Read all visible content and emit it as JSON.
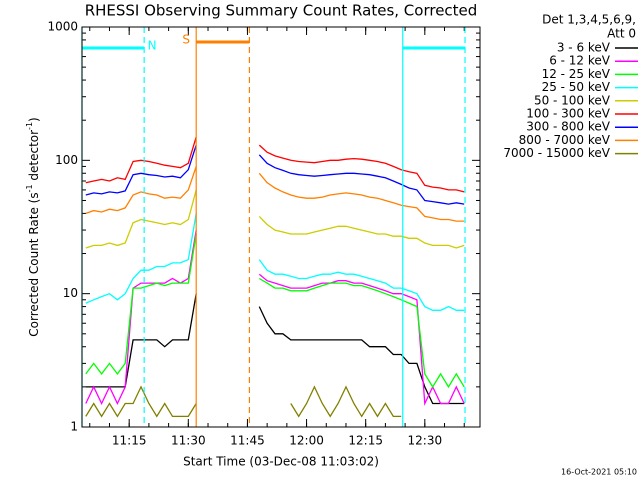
{
  "chart_data": {
    "type": "line",
    "title": "RHESSI Observing Summary Count Rates, Corrected",
    "xlabel": "Start Time (03-Dec-08 11:03:02)",
    "ylabel": [
      "Corrected Count Rate (s",
      "-1",
      " detector",
      "-1",
      ")"
    ],
    "legend_title": [
      "Det 1,3,4,5,6,9,",
      "Att 0"
    ],
    "footer": "16-Oct-2021 05:10",
    "ylog": true,
    "xlim": [
      663.03,
      764
    ],
    "ylim": [
      1,
      1000
    ],
    "yticks": [
      1,
      10,
      100,
      1000
    ],
    "xticks": [
      {
        "value": 675,
        "label": "11:15"
      },
      {
        "value": 690,
        "label": "11:30"
      },
      {
        "value": 705,
        "label": "11:45"
      },
      {
        "value": 720,
        "label": "12:00"
      },
      {
        "value": 735,
        "label": "12:15"
      },
      {
        "value": 750,
        "label": "12:30"
      }
    ],
    "intervals": [
      {
        "label": "N",
        "color": "#00ffff",
        "start": 663.03,
        "end": 678.8
      },
      {
        "label": "S",
        "color": "#ff8000",
        "start": 692,
        "end": 705.5
      },
      {
        "color": "#00ffff",
        "start": 744.4,
        "end": 760.2
      }
    ],
    "x": [
      664,
      666,
      668,
      670,
      672,
      674,
      676,
      678,
      680,
      682,
      684,
      686,
      688,
      690,
      692,
      694,
      696,
      698,
      700,
      702,
      704,
      706,
      708,
      710,
      712,
      714,
      716,
      718,
      720,
      722,
      724,
      726,
      728,
      730,
      732,
      734,
      736,
      738,
      740,
      742,
      744,
      746,
      748,
      750,
      752,
      754,
      756,
      758,
      760
    ],
    "series": [
      {
        "name": "3 - 6 keV",
        "color": "#000000",
        "values": [
          2,
          2,
          2,
          2,
          2,
          2,
          4.5,
          4.5,
          4.5,
          4.5,
          4,
          4.5,
          4.5,
          4.5,
          10,
          null,
          null,
          null,
          null,
          null,
          null,
          null,
          8,
          6,
          5,
          5,
          4.5,
          4.5,
          4.5,
          4.5,
          4.5,
          4.5,
          4.5,
          4.5,
          4.5,
          4.5,
          4,
          4,
          4,
          3.5,
          3.5,
          3,
          3,
          2,
          1.5,
          1.5,
          1.5,
          1.5,
          1.5
        ]
      },
      {
        "name": "6 - 12 keV",
        "color": "#ff00ff",
        "values": [
          1.5,
          2,
          1.5,
          2,
          1.5,
          2,
          11,
          12,
          12,
          12,
          12,
          13,
          12,
          13,
          30,
          null,
          null,
          null,
          null,
          null,
          null,
          null,
          14,
          12.5,
          12,
          11.5,
          11,
          11,
          11,
          11.5,
          12,
          12,
          12.5,
          12.5,
          12,
          12,
          11.5,
          11,
          10.5,
          10,
          10,
          9.5,
          9,
          1.5,
          2,
          1.5,
          1.5,
          2,
          1.5
        ]
      },
      {
        "name": "12 - 25 keV",
        "color": "#00ff00",
        "values": [
          2.5,
          3,
          2.5,
          3,
          2.5,
          3,
          11,
          11,
          11.5,
          12,
          11.5,
          12,
          12,
          12,
          28,
          null,
          null,
          null,
          null,
          null,
          null,
          null,
          13,
          12,
          11,
          11,
          10.5,
          10.5,
          10.5,
          11,
          11.5,
          12,
          12,
          12,
          11.5,
          11.5,
          11,
          10.5,
          10,
          9.5,
          9,
          8.5,
          8,
          2.5,
          2,
          2.5,
          2,
          2.5,
          2
        ]
      },
      {
        "name": "25 - 50 keV",
        "color": "#00ffff",
        "values": [
          8.5,
          9,
          9.5,
          10,
          9,
          10,
          13,
          15,
          15,
          16,
          16,
          17,
          17,
          18,
          40,
          null,
          null,
          null,
          null,
          null,
          null,
          null,
          18,
          15,
          14,
          14,
          13.5,
          13,
          13,
          13.5,
          14,
          14,
          14.5,
          14,
          14,
          13.5,
          13,
          12.5,
          12,
          11,
          11,
          10.5,
          10,
          8,
          7.5,
          7.5,
          8,
          7.5,
          7.5
        ]
      },
      {
        "name": "50 - 100 keV",
        "color": "#cccc00",
        "values": [
          22,
          23,
          23,
          24,
          23,
          24,
          34,
          36,
          35,
          34,
          33,
          34,
          33,
          36,
          60,
          null,
          null,
          null,
          null,
          null,
          null,
          null,
          38,
          33,
          30,
          29,
          28,
          28,
          28,
          29,
          30,
          31,
          32,
          32,
          31,
          30,
          29,
          28,
          28,
          27,
          27,
          26,
          26,
          24,
          23,
          23,
          23,
          22,
          23
        ]
      },
      {
        "name": "100 - 300 keV",
        "color": "#ff0000",
        "values": [
          68,
          70,
          72,
          70,
          74,
          72,
          98,
          100,
          98,
          95,
          92,
          90,
          88,
          95,
          150,
          null,
          null,
          null,
          null,
          null,
          null,
          null,
          130,
          115,
          108,
          104,
          100,
          98,
          97,
          96,
          98,
          100,
          100,
          102,
          103,
          102,
          100,
          98,
          95,
          90,
          85,
          82,
          80,
          65,
          63,
          62,
          60,
          60,
          58
        ]
      },
      {
        "name": "300 - 800 keV",
        "color": "#0000ff",
        "values": [
          55,
          57,
          56,
          58,
          57,
          59,
          78,
          80,
          78,
          77,
          75,
          76,
          74,
          85,
          130,
          null,
          null,
          null,
          null,
          null,
          null,
          null,
          110,
          95,
          88,
          84,
          80,
          78,
          77,
          76,
          77,
          78,
          79,
          80,
          80,
          79,
          78,
          76,
          74,
          70,
          66,
          62,
          60,
          50,
          49,
          48,
          47,
          48,
          47
        ]
      },
      {
        "name": "800 - 7000 keV",
        "color": "#ff8000",
        "values": [
          40,
          42,
          41,
          43,
          42,
          44,
          55,
          58,
          56,
          55,
          52,
          53,
          52,
          60,
          90,
          null,
          null,
          null,
          null,
          null,
          null,
          null,
          80,
          68,
          62,
          58,
          55,
          53,
          52,
          52,
          53,
          55,
          56,
          57,
          56,
          55,
          53,
          52,
          50,
          48,
          46,
          45,
          44,
          38,
          37,
          36,
          36,
          35,
          35
        ]
      },
      {
        "name": "7000 - 15000 keV",
        "color": "#808000",
        "values": [
          1.2,
          1.5,
          1.2,
          1.5,
          1.2,
          1.5,
          1.5,
          2,
          1.5,
          1.2,
          1.5,
          1.2,
          1.2,
          1.2,
          1.5,
          null,
          null,
          null,
          null,
          null,
          null,
          null,
          null,
          null,
          null,
          null,
          1.5,
          1.2,
          1.5,
          2,
          1.5,
          1.2,
          1.5,
          2,
          1.5,
          1.2,
          1.5,
          1.2,
          1.5,
          1.2,
          1.2,
          null,
          null,
          null,
          null,
          null,
          null,
          null,
          null
        ]
      }
    ]
  }
}
